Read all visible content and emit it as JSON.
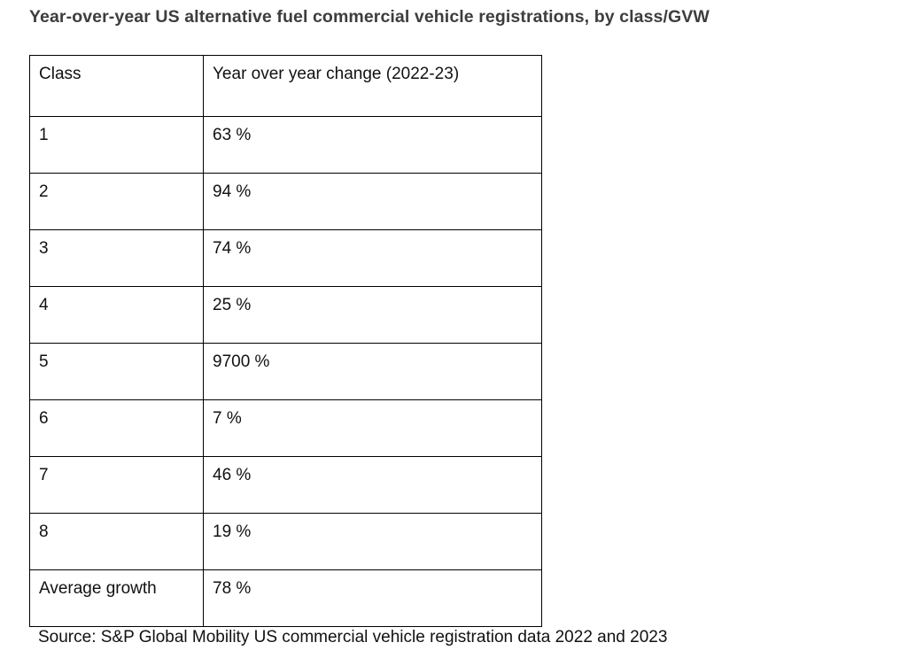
{
  "page": {
    "title": "Year-over-year US alternative fuel commercial vehicle registrations, by class/GVW",
    "source": "Source: S&P Global Mobility US commercial vehicle registration data 2022 and 2023"
  },
  "table": {
    "headers": [
      "Class",
      "Year over year change (2022-23)"
    ],
    "rows": [
      [
        "1",
        "63 %"
      ],
      [
        "2",
        "94 %"
      ],
      [
        "3",
        "74 %"
      ],
      [
        "4",
        "25 %"
      ],
      [
        "5",
        "9700 %"
      ],
      [
        "6",
        "7 %"
      ],
      [
        "7",
        "46 %"
      ],
      [
        "8",
        "19 %"
      ],
      [
        "Average growth",
        "78 %"
      ]
    ]
  },
  "chart_data": {
    "type": "table",
    "title": "Year-over-year US alternative fuel commercial vehicle registrations, by class/GVW",
    "columns": [
      "Class",
      "Year over year change (2022-23)"
    ],
    "categories": [
      "1",
      "2",
      "3",
      "4",
      "5",
      "6",
      "7",
      "8",
      "Average growth"
    ],
    "values_percent": [
      63,
      94,
      74,
      25,
      9700,
      7,
      46,
      19,
      78
    ],
    "source": "Source: S&P Global Mobility US commercial vehicle registration data 2022 and 2023"
  }
}
